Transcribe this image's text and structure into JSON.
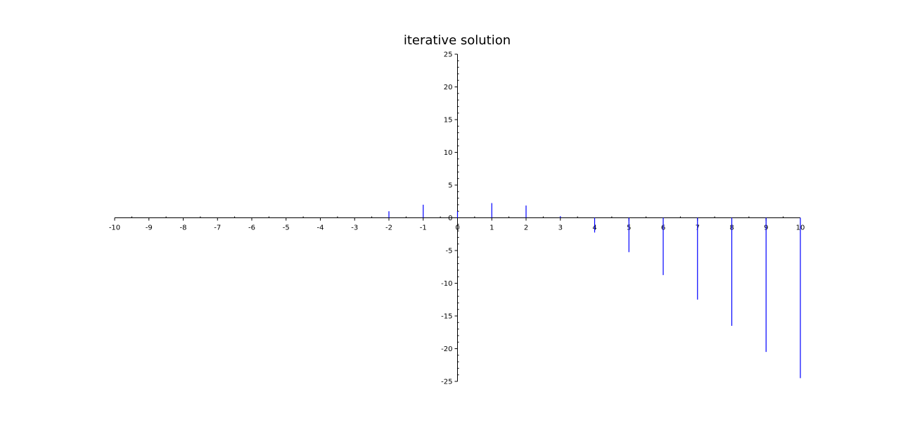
{
  "chart_data": {
    "type": "stem",
    "title": "iterative solution",
    "xlabel": "",
    "ylabel": "",
    "xlim": [
      -10,
      10
    ],
    "ylim": [
      -25,
      25
    ],
    "x_ticks": [
      -10,
      -9,
      -8,
      -7,
      -6,
      -5,
      -4,
      -3,
      -2,
      -1,
      0,
      1,
      2,
      3,
      4,
      5,
      6,
      7,
      8,
      9,
      10
    ],
    "y_ticks": [
      -25,
      -20,
      -15,
      -10,
      -5,
      0,
      5,
      10,
      15,
      20,
      25
    ],
    "axes_origin": "centered",
    "grid": false,
    "color": "#0000ff",
    "series": [
      {
        "x": [
          -10,
          -9,
          -8,
          -7,
          -6,
          -5,
          -4,
          -3,
          -2,
          -1,
          0,
          1,
          2,
          3,
          4,
          5,
          6,
          7,
          8,
          9,
          10
        ],
        "y": [
          0,
          0,
          0,
          0,
          0,
          0,
          0,
          0,
          1,
          2,
          1,
          2.25,
          1.875,
          0.25,
          -2.25,
          -5.25,
          -8.75,
          -12.5,
          -16.5,
          -20.5,
          -24.5
        ]
      }
    ]
  }
}
